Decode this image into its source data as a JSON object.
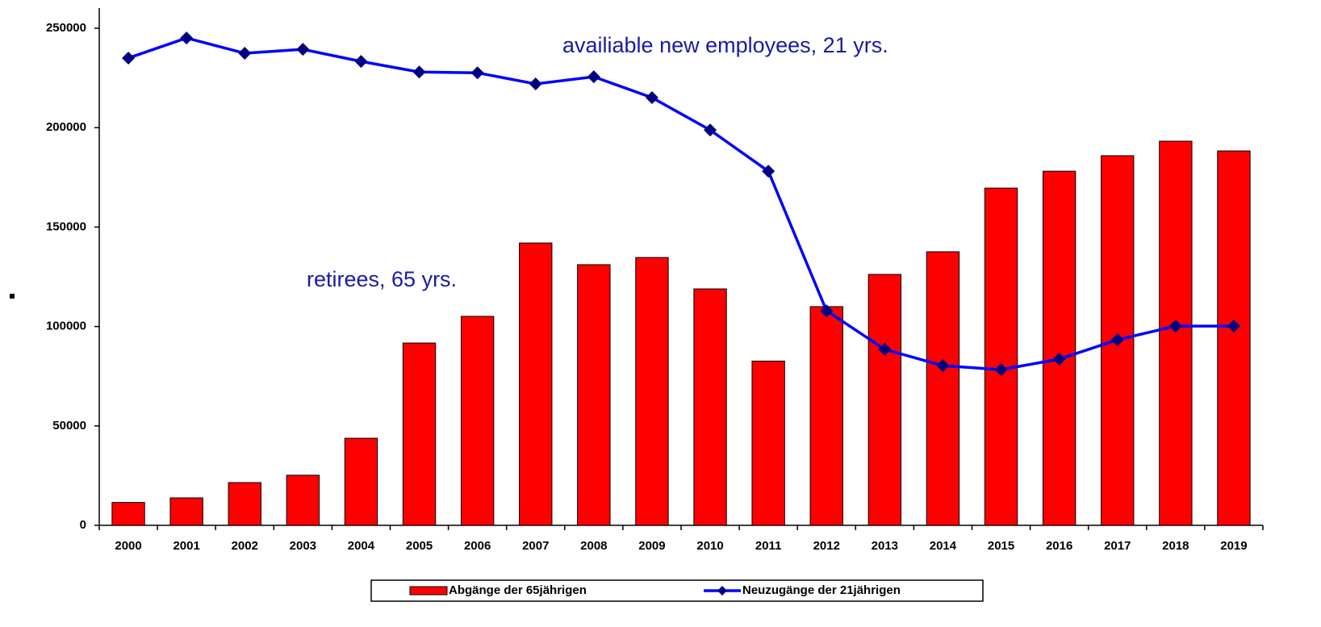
{
  "chart_data": {
    "type": "bar-line",
    "categories": [
      "2000",
      "2001",
      "2002",
      "2003",
      "2004",
      "2005",
      "2006",
      "2007",
      "2008",
      "2009",
      "2010",
      "2011",
      "2012",
      "2013",
      "2014",
      "2015",
      "2016",
      "2017",
      "2018",
      "2019"
    ],
    "series": [
      {
        "name": "Abgänge der 65jährigen",
        "type": "bar",
        "color": "#ff0000",
        "values": [
          11500,
          13800,
          21500,
          25200,
          43800,
          91700,
          105100,
          142000,
          131100,
          134700,
          118900,
          82600,
          110000,
          126200,
          137600,
          169600,
          178100,
          185900,
          193200,
          188300
        ]
      },
      {
        "name": "Neuzugänge der 21jährigen",
        "type": "line",
        "color": "#0000ff",
        "marker_color": "#000080",
        "values": [
          235000,
          245100,
          237400,
          239400,
          233300,
          228000,
          227600,
          222000,
          225600,
          215100,
          198800,
          178100,
          107900,
          88500,
          80300,
          78300,
          83600,
          93300,
          100200,
          100200
        ]
      }
    ],
    "annotations": [
      "availiable new employees, 21 yrs.",
      "retirees, 65 yrs."
    ],
    "ylim": [
      0,
      250000
    ],
    "yticks": [
      0,
      50000,
      100000,
      150000,
      200000,
      250000
    ],
    "legend": "bottom"
  }
}
